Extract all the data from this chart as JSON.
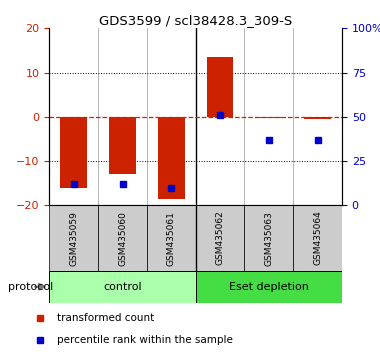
{
  "title": "GDS3599 / scl38428.3_309-S",
  "samples": [
    "GSM435059",
    "GSM435060",
    "GSM435061",
    "GSM435062",
    "GSM435063",
    "GSM435064"
  ],
  "red_bars": [
    -16.0,
    -13.0,
    -18.5,
    13.5,
    -0.3,
    -0.5
  ],
  "blue_percentiles": [
    12,
    12,
    10,
    51,
    37,
    37
  ],
  "ylim_left": [
    -20,
    20
  ],
  "ylim_right": [
    0,
    100
  ],
  "yticks_left": [
    -20,
    -10,
    0,
    10,
    20
  ],
  "yticks_right": [
    0,
    25,
    50,
    75,
    100
  ],
  "ytick_right_labels": [
    "0",
    "25",
    "50",
    "75",
    "100%"
  ],
  "groups": [
    {
      "label": "control",
      "indices": [
        0,
        1,
        2
      ],
      "color": "#aaffaa"
    },
    {
      "label": "Eset depletion",
      "indices": [
        3,
        4,
        5
      ],
      "color": "#44dd44"
    }
  ],
  "protocol_label": "protocol",
  "red_color": "#cc2200",
  "blue_color": "#0000cc",
  "tick_bg_color": "#cccccc",
  "bar_width": 0.55,
  "legend_red_label": "transformed count",
  "legend_blue_label": "percentile rank within the sample"
}
